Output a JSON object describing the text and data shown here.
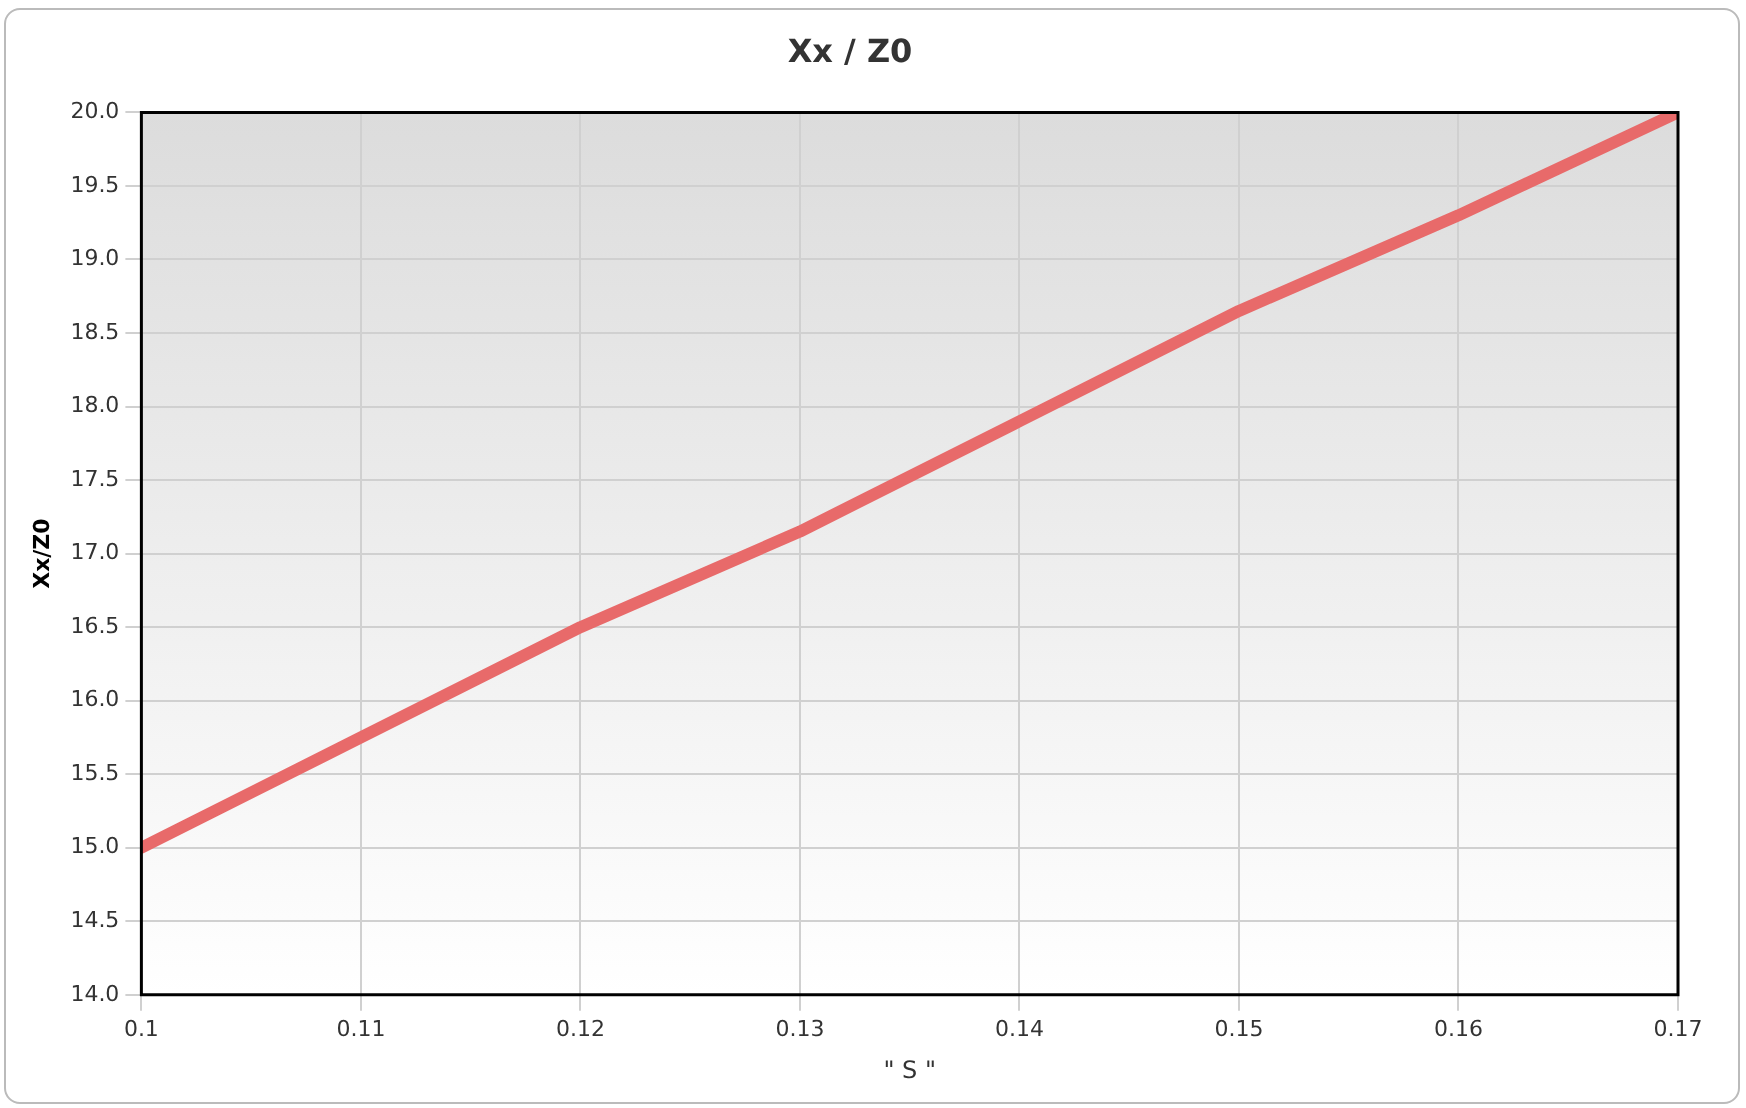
{
  "chart_data": {
    "type": "line",
    "title": "Xx / Z0",
    "xlabel": "\" S \"",
    "ylabel": "Xx/Z0",
    "x": [
      0.1,
      0.11,
      0.12,
      0.13,
      0.14,
      0.15,
      0.16,
      0.17
    ],
    "series": [
      {
        "color": "#e86a6a",
        "values": [
          15.0,
          15.75,
          16.5,
          17.15,
          17.9,
          18.65,
          19.3,
          20.0
        ]
      }
    ],
    "xlim": [
      0.1,
      0.17
    ],
    "xticks": [
      0.1,
      0.11,
      0.12,
      0.13,
      0.14,
      0.15,
      0.16,
      0.17
    ],
    "ylim": [
      14.0,
      20.0
    ],
    "yticks": [
      {
        "value": 14,
        "label": "14.0"
      },
      {
        "value": 14.5,
        "label": "14.5"
      },
      {
        "value": 15,
        "label": "15.0"
      },
      {
        "value": 15.5,
        "label": "15.5"
      },
      {
        "value": 16,
        "label": "16.0"
      },
      {
        "value": 16.5,
        "label": "16.5"
      },
      {
        "value": 17,
        "label": "17.0"
      },
      {
        "value": 17.5,
        "label": "17.5"
      },
      {
        "value": 18,
        "label": "18.0"
      },
      {
        "value": 18.5,
        "label": "18.5"
      },
      {
        "value": 19,
        "label": "19.0"
      },
      {
        "value": 19.5,
        "label": "19.5"
      },
      {
        "value": 20,
        "label": "20.0"
      }
    ],
    "grid": true,
    "legend": false,
    "marker": "none",
    "line_style": "solid"
  }
}
